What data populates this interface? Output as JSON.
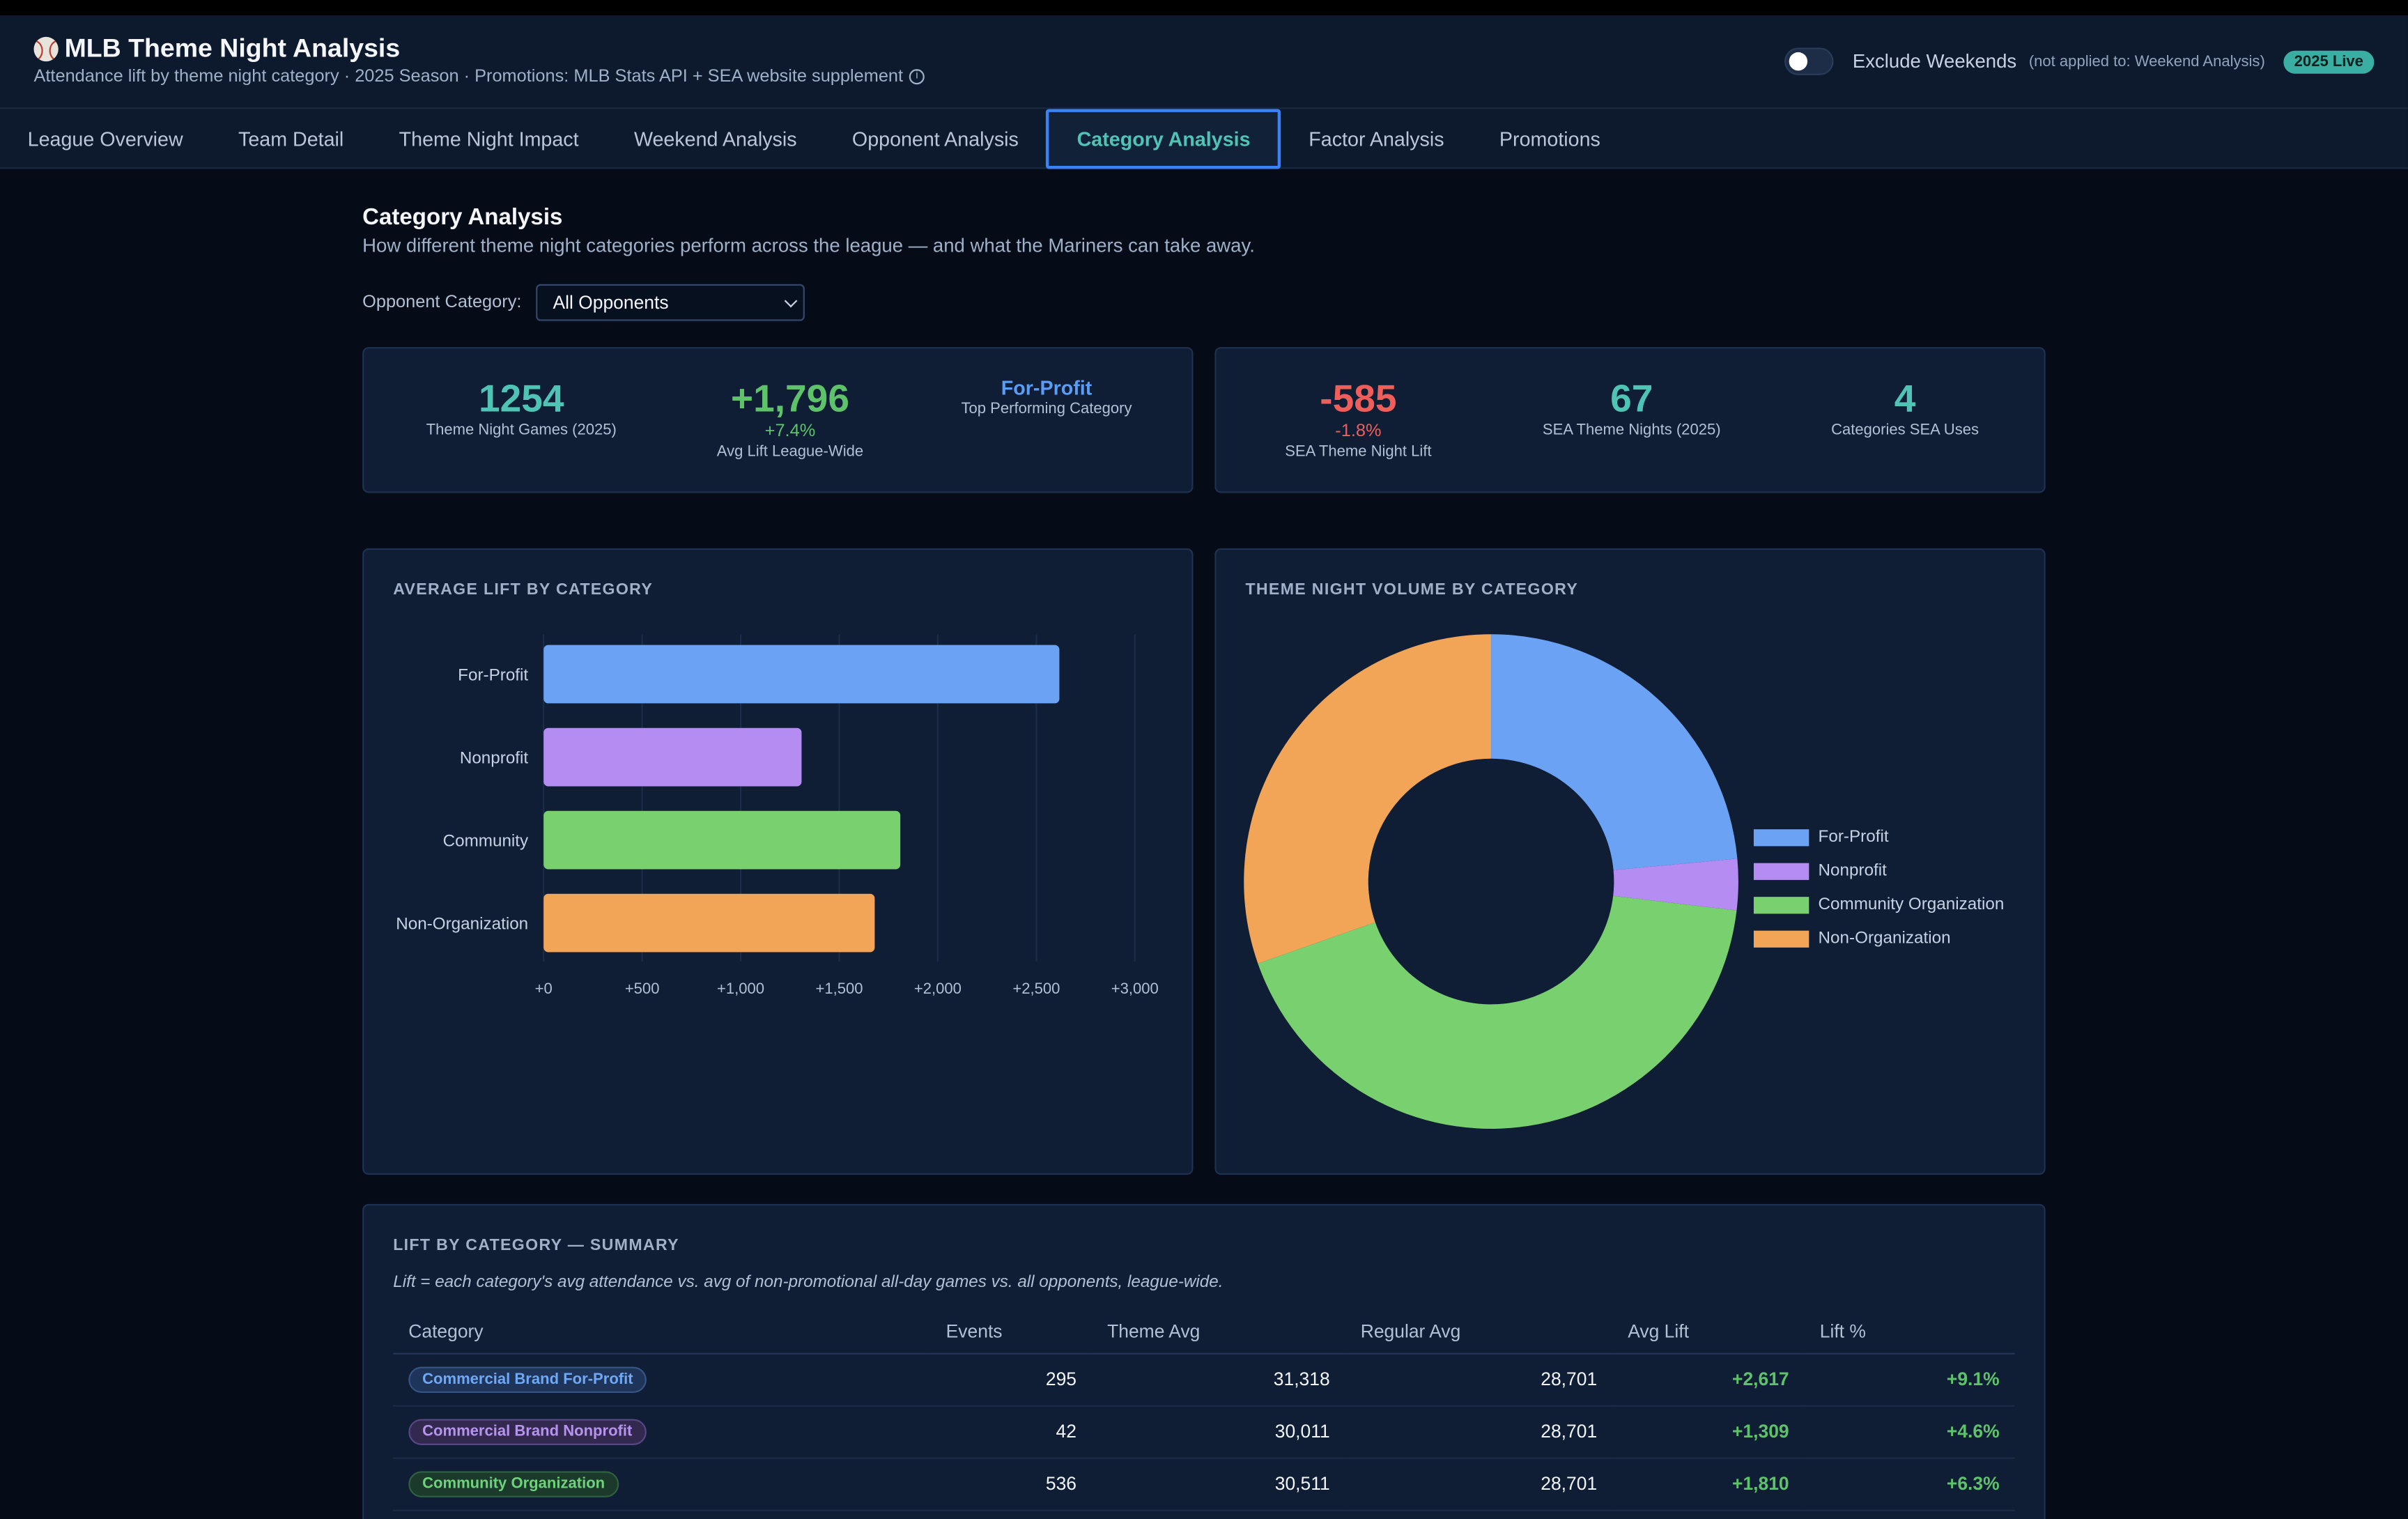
{
  "header": {
    "title": "MLB Theme Night Analysis",
    "subtitle": "Attendance lift by theme night category · 2025 Season · Promotions: MLB Stats API + SEA website supplement",
    "toggle_label": "Exclude Weekends",
    "toggle_note": "(not applied to: Weekend Analysis)",
    "toggle_on": false,
    "live_badge": "2025 Live"
  },
  "tabs": [
    {
      "label": "League Overview"
    },
    {
      "label": "Team Detail"
    },
    {
      "label": "Theme Night Impact"
    },
    {
      "label": "Weekend Analysis"
    },
    {
      "label": "Opponent Analysis"
    },
    {
      "label": "Category Analysis",
      "active": true
    },
    {
      "label": "Factor Analysis"
    },
    {
      "label": "Promotions"
    }
  ],
  "page": {
    "title": "Category Analysis",
    "description": "How different theme night categories perform across the league — and what the Mariners can take away.",
    "filter_label": "Opponent Category:",
    "filter_value": "All Opponents"
  },
  "league_stats": {
    "games_value": "1254",
    "games_label": "Theme Night Games (2025)",
    "lift_value": "+1,796",
    "lift_pct": "+7.4%",
    "lift_label": "Avg Lift League-Wide",
    "top_value": "For-Profit",
    "top_label": "Top Performing Category"
  },
  "sea_stats": {
    "lift_value": "-585",
    "lift_pct": "-1.8%",
    "lift_label": "SEA Theme Night Lift",
    "nights_value": "67",
    "nights_label": "SEA Theme Nights (2025)",
    "cats_value": "4",
    "cats_label": "Categories SEA Uses"
  },
  "bar_panel": {
    "title": "AVERAGE LIFT BY CATEGORY",
    "tick_labels": [
      "+0",
      "+500",
      "+1,000",
      "+1,500",
      "+2,000",
      "+2,500",
      "+3,000"
    ]
  },
  "donut_panel": {
    "title": "THEME NIGHT VOLUME BY CATEGORY",
    "legend": [
      "For-Profit",
      "Nonprofit",
      "Community Organization",
      "Non-Organization"
    ]
  },
  "colors": {
    "for_profit": "#6ba2f3",
    "nonprofit": "#b48cf2",
    "community": "#79d06e",
    "non_org": "#f2a556"
  },
  "chart_data": [
    {
      "type": "bar",
      "orientation": "horizontal",
      "title": "AVERAGE LIFT BY CATEGORY",
      "categories": [
        "For-Profit",
        "Nonprofit",
        "Community",
        "Non-Organization"
      ],
      "values": [
        2617,
        1309,
        1810,
        1680
      ],
      "xlim": [
        0,
        3000
      ],
      "grid": true
    },
    {
      "type": "pie",
      "donut": true,
      "title": "THEME NIGHT VOLUME BY CATEGORY",
      "categories": [
        "For-Profit",
        "Nonprofit",
        "Community Organization",
        "Non-Organization"
      ],
      "values": [
        295,
        42,
        536,
        381
      ],
      "legend_position": "right"
    }
  ],
  "table": {
    "title": "LIFT BY CATEGORY — SUMMARY",
    "note": "Lift = each category's avg attendance vs. avg of non-promotional all-day games vs. all opponents, league-wide.",
    "headers": [
      "Category",
      "Events",
      "Theme Avg",
      "Regular Avg",
      "Avg Lift",
      "Lift %"
    ],
    "rows": [
      {
        "category": "Commercial Brand For-Profit",
        "events": "295",
        "theme_avg": "31,318",
        "regular_avg": "28,701",
        "lift": "+2,617",
        "lift_pct": "+9.1%"
      },
      {
        "category": "Commercial Brand Nonprofit",
        "events": "42",
        "theme_avg": "30,011",
        "regular_avg": "28,701",
        "lift": "+1,309",
        "lift_pct": "+4.6%"
      },
      {
        "category": "Community Organization",
        "events": "536",
        "theme_avg": "30,511",
        "regular_avg": "28,701",
        "lift": "+1,810",
        "lift_pct": "+6.3%"
      }
    ]
  }
}
